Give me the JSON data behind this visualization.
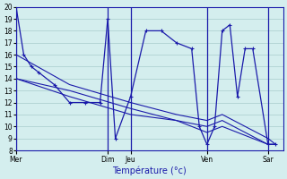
{
  "xlabel": "Température (°c)",
  "bg_color": "#d4eeee",
  "grid_color": "#a8cccc",
  "line_color": "#1a1aaa",
  "ylim": [
    8,
    20
  ],
  "yticks": [
    8,
    9,
    10,
    11,
    12,
    13,
    14,
    15,
    16,
    17,
    18,
    19,
    20
  ],
  "xlim": [
    0,
    210
  ],
  "day_labels": [
    "Mer",
    "Dim",
    "Jeu",
    "Ven",
    "Sar"
  ],
  "day_x": [
    0,
    72,
    90,
    150,
    198
  ],
  "vline_x": [
    0,
    72,
    90,
    150,
    198
  ],
  "series_main": [
    [
      0,
      20
    ],
    [
      6,
      16
    ],
    [
      12,
      15
    ],
    [
      18,
      14.5
    ],
    [
      30,
      13.5
    ],
    [
      42,
      12
    ],
    [
      54,
      12
    ],
    [
      66,
      12
    ],
    [
      72,
      19
    ],
    [
      78,
      9
    ],
    [
      90,
      12.5
    ],
    [
      102,
      18
    ],
    [
      114,
      18
    ],
    [
      126,
      17
    ],
    [
      138,
      16.5
    ],
    [
      144,
      10
    ],
    [
      150,
      8.5
    ],
    [
      156,
      10
    ],
    [
      162,
      18
    ],
    [
      168,
      18.5
    ],
    [
      174,
      12.5
    ],
    [
      180,
      16.5
    ],
    [
      186,
      16.5
    ],
    [
      198,
      8.5
    ],
    [
      204,
      8.5
    ]
  ],
  "series_trend": [
    [
      [
        0,
        16
      ],
      [
        42,
        13.5
      ],
      [
        90,
        12
      ],
      [
        126,
        11
      ],
      [
        150,
        10.5
      ],
      [
        162,
        11
      ],
      [
        198,
        9
      ],
      [
        204,
        8.5
      ]
    ],
    [
      [
        0,
        14
      ],
      [
        42,
        13
      ],
      [
        90,
        11.5
      ],
      [
        126,
        10.5
      ],
      [
        150,
        10
      ],
      [
        162,
        10.5
      ],
      [
        198,
        8.5
      ],
      [
        204,
        8.5
      ]
    ],
    [
      [
        0,
        14
      ],
      [
        42,
        12.5
      ],
      [
        90,
        11
      ],
      [
        126,
        10.5
      ],
      [
        150,
        9.5
      ],
      [
        162,
        10
      ],
      [
        198,
        8.5
      ],
      [
        204,
        8.5
      ]
    ]
  ]
}
